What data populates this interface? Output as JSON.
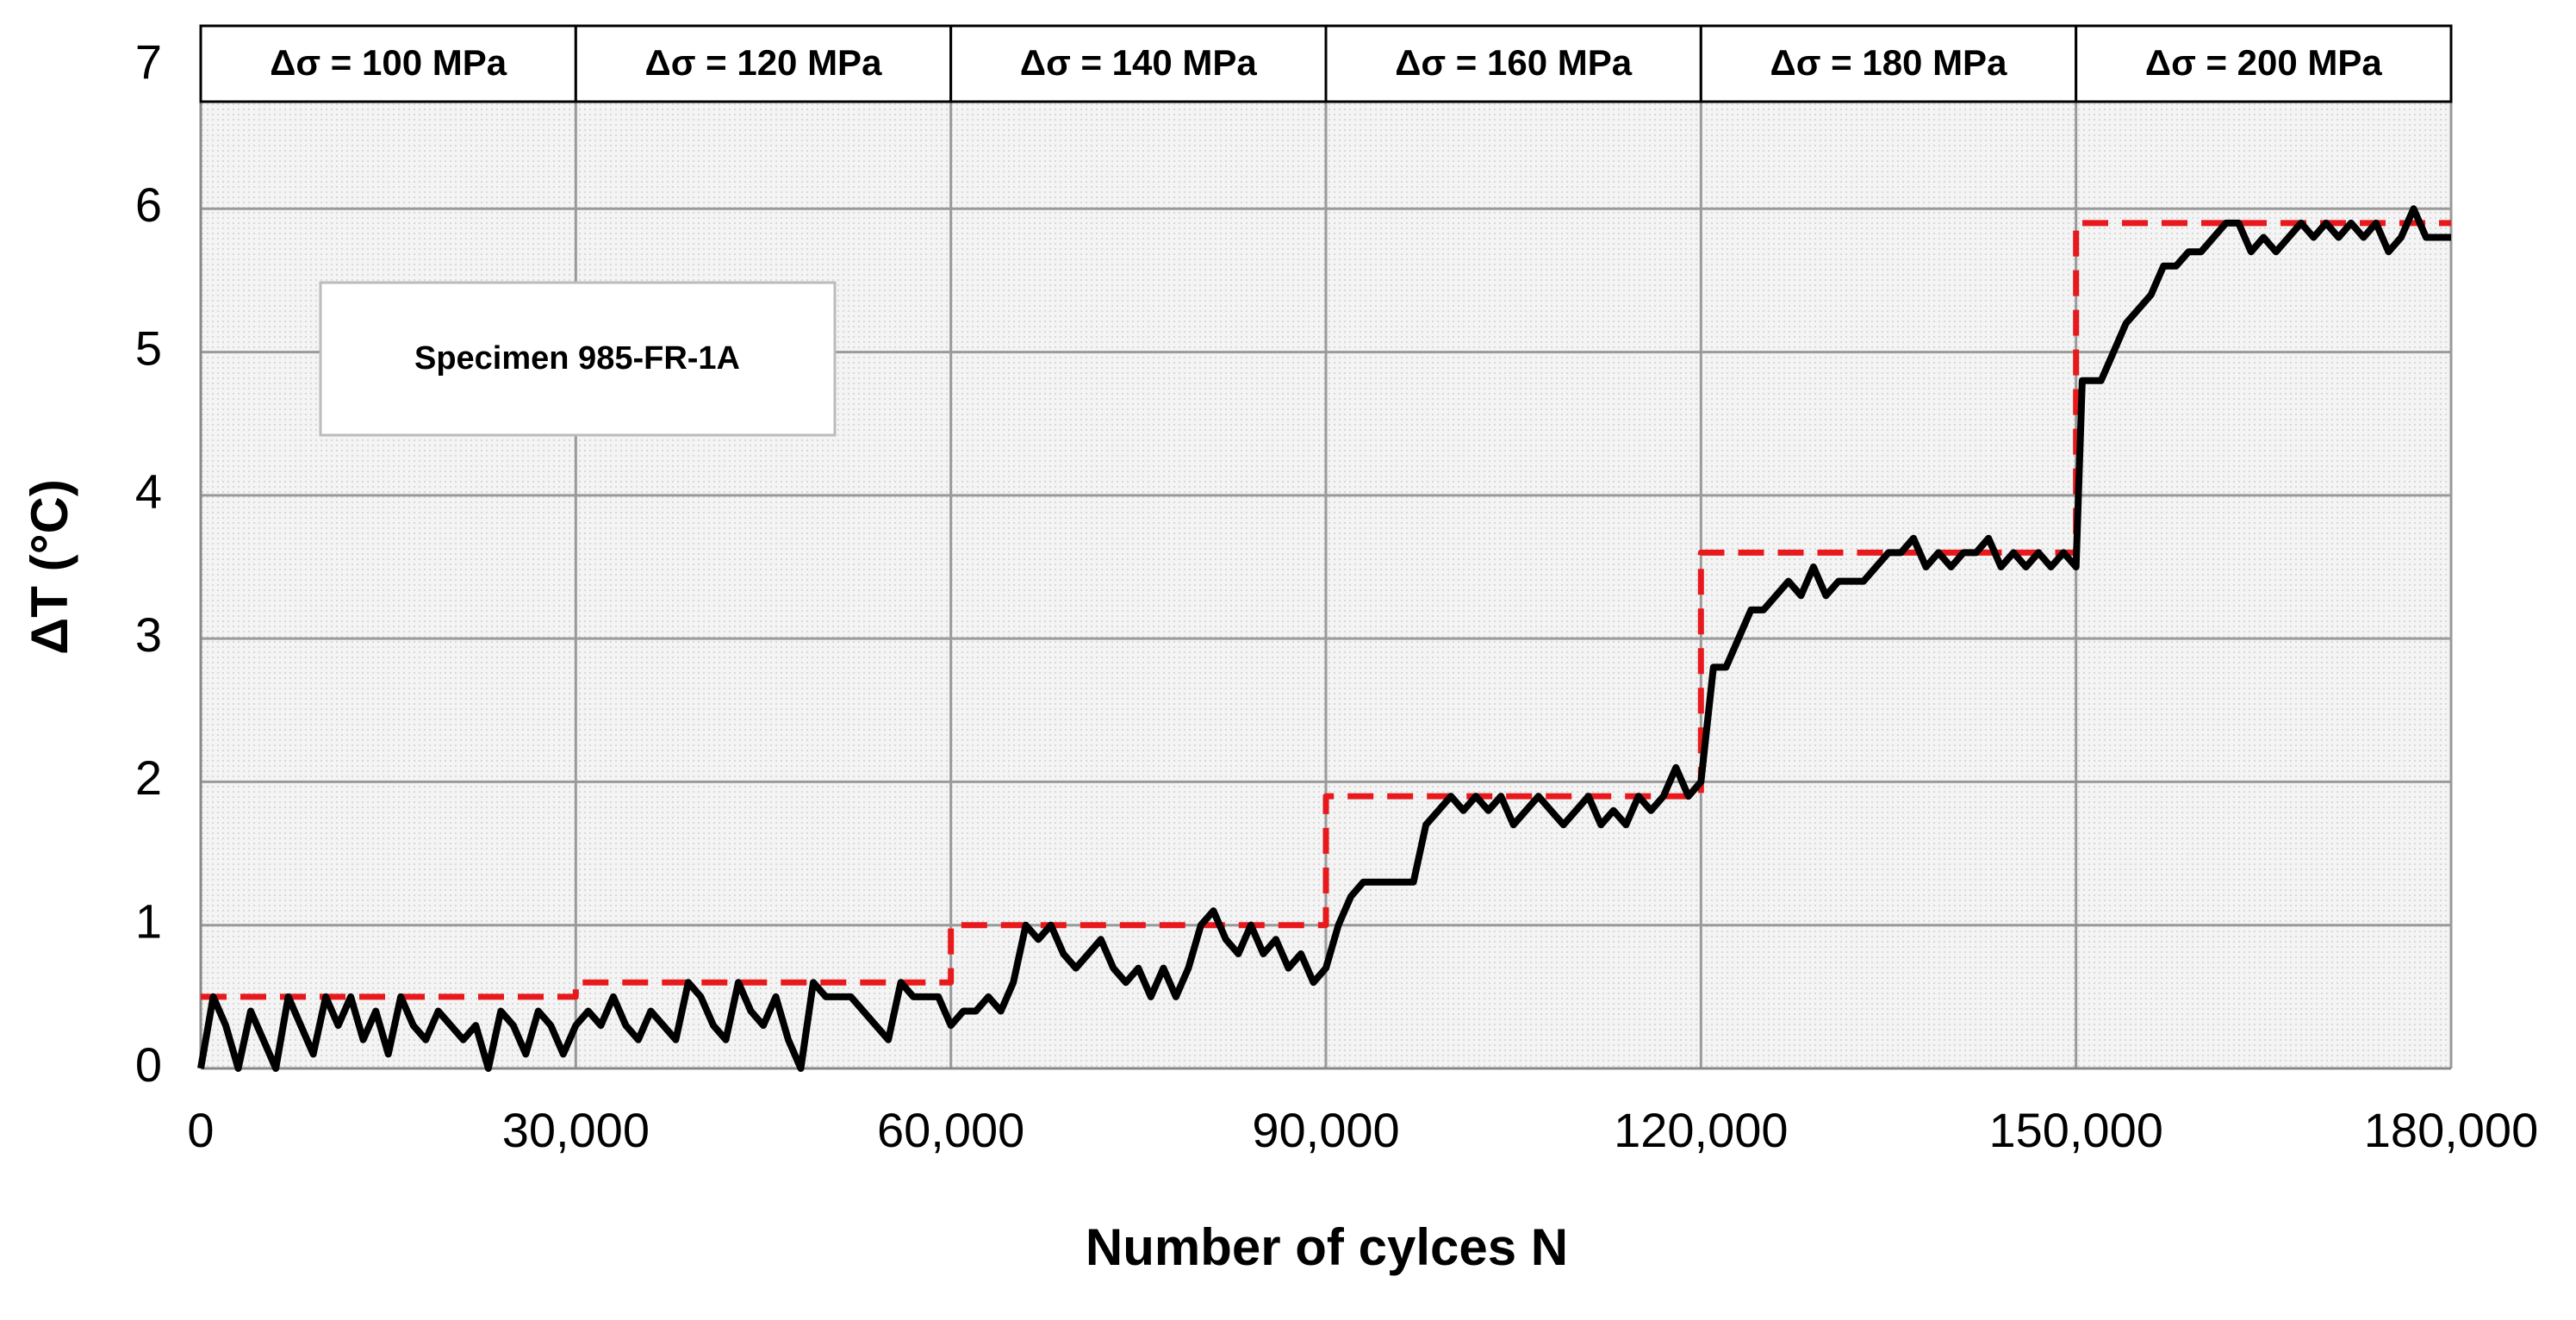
{
  "chart_data": {
    "type": "line",
    "x_label": "Number of cylces N",
    "y_label": "ΔT (°C)",
    "stress_levels": [
      "Δσ = 100 MPa",
      "Δσ = 120 MPa",
      "Δσ = 140 MPa",
      "Δσ = 160 MPa",
      "Δσ = 180 MPa",
      "Δσ = 200 MPa"
    ],
    "specimen": "Specimen 985-FR-1A",
    "xlim": [
      0,
      180000
    ],
    "ylim": [
      0,
      7
    ],
    "xticks": [
      0,
      {
        "value": 30000,
        "label": "30,000"
      },
      {
        "value": 60000,
        "label": "60,000"
      },
      {
        "value": 90000,
        "label": "90,000"
      },
      {
        "value": 120000,
        "label": "120,000"
      },
      {
        "value": 150000,
        "label": "150,000"
      },
      {
        "value": 180000,
        "label": "180,000"
      }
    ],
    "yticks": [
      0,
      1,
      2,
      3,
      4,
      5,
      6,
      7
    ],
    "grid": true,
    "series": [
      {
        "color": "#000000",
        "style": "solid",
        "x": [
          0,
          1000,
          2000,
          3000,
          4000,
          5000,
          6000,
          7000,
          8000,
          9000,
          10000,
          11000,
          12000,
          13000,
          14000,
          15000,
          16000,
          17000,
          18000,
          19000,
          20000,
          21000,
          22000,
          23000,
          24000,
          25000,
          26000,
          27000,
          28000,
          29000,
          30000,
          31000,
          32000,
          33000,
          34000,
          35000,
          36000,
          37000,
          38000,
          39000,
          40000,
          41000,
          42000,
          43000,
          44000,
          45000,
          46000,
          47000,
          48000,
          49000,
          50000,
          51000,
          52000,
          53000,
          54000,
          55000,
          56000,
          57000,
          58000,
          59000,
          60000,
          61000,
          62000,
          63000,
          64000,
          65000,
          66000,
          67000,
          68000,
          69000,
          70000,
          71000,
          72000,
          73000,
          74000,
          75000,
          76000,
          77000,
          78000,
          79000,
          80000,
          81000,
          82000,
          83000,
          84000,
          85000,
          86000,
          87000,
          88000,
          89000,
          90000,
          91000,
          92000,
          93000,
          94000,
          95000,
          96000,
          97000,
          98000,
          99000,
          100000,
          101000,
          102000,
          103000,
          104000,
          105000,
          106000,
          107000,
          108000,
          109000,
          110000,
          111000,
          112000,
          113000,
          114000,
          115000,
          116000,
          117000,
          118000,
          119000,
          120000,
          121000,
          122000,
          123000,
          124000,
          125000,
          126000,
          127000,
          128000,
          129000,
          130000,
          131000,
          132000,
          133000,
          134000,
          135000,
          136000,
          137000,
          138000,
          139000,
          140000,
          141000,
          142000,
          143000,
          144000,
          145000,
          146000,
          147000,
          148000,
          149000,
          150000,
          150500,
          152000,
          153000,
          154000,
          155000,
          156000,
          157000,
          158000,
          159000,
          160000,
          161000,
          162000,
          163000,
          164000,
          165000,
          166000,
          167000,
          168000,
          169000,
          170000,
          171000,
          172000,
          173000,
          174000,
          175000,
          176000,
          177000,
          178000,
          179000,
          180000
        ],
        "values": [
          0,
          0.5,
          0.3,
          0,
          0.4,
          0.2,
          0,
          0.5,
          0.3,
          0.1,
          0.5,
          0.3,
          0.5,
          0.2,
          0.4,
          0.1,
          0.5,
          0.3,
          0.2,
          0.4,
          0.3,
          0.2,
          0.3,
          0,
          0.4,
          0.3,
          0.1,
          0.4,
          0.3,
          0.1,
          0.3,
          0.4,
          0.3,
          0.5,
          0.3,
          0.2,
          0.4,
          0.3,
          0.2,
          0.6,
          0.5,
          0.3,
          0.2,
          0.6,
          0.4,
          0.3,
          0.5,
          0.2,
          0,
          0.6,
          0.5,
          0.5,
          0.5,
          0.4,
          0.3,
          0.2,
          0.6,
          0.5,
          0.5,
          0.5,
          0.3,
          0.4,
          0.4,
          0.5,
          0.4,
          0.6,
          1.0,
          0.9,
          1.0,
          0.8,
          0.7,
          0.8,
          0.9,
          0.7,
          0.6,
          0.7,
          0.5,
          0.7,
          0.5,
          0.7,
          1.0,
          1.1,
          0.9,
          0.8,
          1.0,
          0.8,
          0.9,
          0.7,
          0.8,
          0.6,
          0.7,
          1.0,
          1.2,
          1.3,
          1.3,
          1.3,
          1.3,
          1.3,
          1.7,
          1.8,
          1.9,
          1.8,
          1.9,
          1.8,
          1.9,
          1.7,
          1.8,
          1.9,
          1.8,
          1.7,
          1.8,
          1.9,
          1.7,
          1.8,
          1.7,
          1.9,
          1.8,
          1.9,
          2.1,
          1.9,
          2.0,
          2.8,
          2.8,
          3.0,
          3.2,
          3.2,
          3.3,
          3.4,
          3.3,
          3.5,
          3.3,
          3.4,
          3.4,
          3.4,
          3.5,
          3.6,
          3.6,
          3.7,
          3.5,
          3.6,
          3.5,
          3.6,
          3.6,
          3.7,
          3.5,
          3.6,
          3.5,
          3.6,
          3.5,
          3.6,
          3.5,
          4.8,
          4.8,
          5.0,
          5.2,
          5.3,
          5.4,
          5.6,
          5.6,
          5.7,
          5.7,
          5.8,
          5.9,
          5.9,
          5.7,
          5.8,
          5.7,
          5.8,
          5.9,
          5.8,
          5.9,
          5.8,
          5.9,
          5.8,
          5.9,
          5.7,
          5.8,
          6.0,
          5.8,
          5.8,
          5.8
        ]
      },
      {
        "color": "#e8191c",
        "style": "dashed",
        "x": [
          0,
          30000,
          30000,
          60000,
          60000,
          90000,
          90000,
          120000,
          120000,
          150000,
          150000,
          180000
        ],
        "values": [
          0.5,
          0.5,
          0.6,
          0.6,
          1,
          1,
          1.9,
          1.9,
          3.6,
          3.6,
          5.9,
          5.9
        ]
      }
    ]
  }
}
